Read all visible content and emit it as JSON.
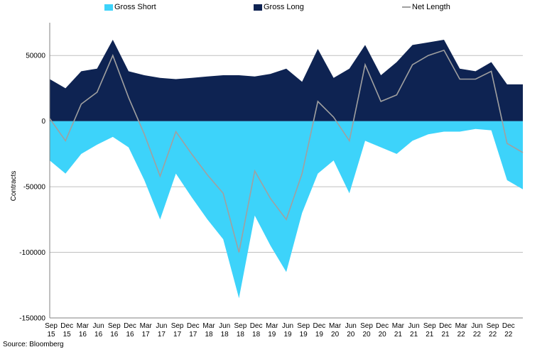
{
  "chart_data": {
    "type": "area",
    "title": "",
    "ylabel": "Contracts",
    "xlabel": "",
    "ylim": [
      -150000,
      75000
    ],
    "yticks": [
      50000,
      0,
      -50000,
      -100000,
      -150000
    ],
    "ytick_labels": [
      "50000",
      "0",
      "-50000",
      "-100000",
      "-150000"
    ],
    "grid": "horizontal",
    "legend": "top",
    "x_tick_labels": [
      {
        "m": "Sep",
        "y": "15"
      },
      {
        "m": "Dec",
        "y": "15"
      },
      {
        "m": "Mar",
        "y": "16"
      },
      {
        "m": "Jun",
        "y": "16"
      },
      {
        "m": "Sep",
        "y": "16"
      },
      {
        "m": "Dec",
        "y": "16"
      },
      {
        "m": "Mar",
        "y": "17"
      },
      {
        "m": "Jun",
        "y": "17"
      },
      {
        "m": "Sep",
        "y": "17"
      },
      {
        "m": "Dec",
        "y": "17"
      },
      {
        "m": "Mar",
        "y": "18"
      },
      {
        "m": "Jun",
        "y": "18"
      },
      {
        "m": "Sep",
        "y": "18"
      },
      {
        "m": "Dec",
        "y": "18"
      },
      {
        "m": "Mar",
        "y": "19"
      },
      {
        "m": "Jun",
        "y": "19"
      },
      {
        "m": "Sep",
        "y": "19"
      },
      {
        "m": "Dec",
        "y": "19"
      },
      {
        "m": "Mar",
        "y": "20"
      },
      {
        "m": "Jun",
        "y": "20"
      },
      {
        "m": "Sep",
        "y": "20"
      },
      {
        "m": "Dec",
        "y": "20"
      },
      {
        "m": "Mar",
        "y": "21"
      },
      {
        "m": "Jun",
        "y": "21"
      },
      {
        "m": "Sep",
        "y": "21"
      },
      {
        "m": "Dec",
        "y": "21"
      },
      {
        "m": "Mar",
        "y": "22"
      },
      {
        "m": "Jun",
        "y": "22"
      },
      {
        "m": "Sep",
        "y": "22"
      },
      {
        "m": "Dec",
        "y": "22"
      }
    ],
    "x": [
      "Sep 15",
      "Dec 15",
      "Mar 16",
      "Jun 16",
      "Sep 16",
      "Dec 16",
      "Mar 17",
      "Jun 17",
      "Sep 17",
      "Dec 17",
      "Mar 18",
      "Jun 18",
      "Sep 18",
      "Dec 18",
      "Mar 19",
      "Jun 19",
      "Sep 19",
      "Dec 19",
      "Mar 20",
      "Jun 20",
      "Sep 20",
      "Dec 20",
      "Mar 21",
      "Jun 21",
      "Sep 21",
      "Dec 21",
      "Mar 22",
      "Jun 22",
      "Sep 22",
      "Dec 22",
      "Jan 23"
    ],
    "series": [
      {
        "name": "Gross Short",
        "color": "#3DD3FA",
        "values": [
          -30000,
          -40000,
          -25000,
          -18000,
          -12000,
          -20000,
          -45000,
          -75000,
          -40000,
          -58000,
          -75000,
          -90000,
          -135000,
          -72000,
          -95000,
          -115000,
          -70000,
          -40000,
          -30000,
          -55000,
          -15000,
          -20000,
          -25000,
          -15000,
          -10000,
          -8000,
          -8000,
          -6000,
          -7000,
          -45000,
          -52000
        ]
      },
      {
        "name": "Gross Long",
        "color": "#0E2352",
        "values": [
          32000,
          25000,
          38000,
          40000,
          62000,
          38000,
          35000,
          33000,
          32000,
          33000,
          34000,
          35000,
          35000,
          34000,
          36000,
          40000,
          30000,
          55000,
          33000,
          40000,
          58000,
          35000,
          45000,
          58000,
          60000,
          62000,
          40000,
          38000,
          45000,
          28000,
          28000
        ]
      },
      {
        "name": "Net Length",
        "color": "#A0A0A0",
        "values": [
          2000,
          -15000,
          13000,
          22000,
          50000,
          18000,
          -10000,
          -42000,
          -8000,
          -25000,
          -41000,
          -55000,
          -100000,
          -38000,
          -59000,
          -75000,
          -40000,
          15000,
          3000,
          -15000,
          43000,
          15000,
          20000,
          43000,
          50000,
          54000,
          32000,
          32000,
          38000,
          -17000,
          -24000
        ]
      }
    ]
  },
  "legend": {
    "gross_short": "Gross Short",
    "gross_long": "Gross Long",
    "net_length": "Net Length"
  },
  "source": "Source: Bloomberg"
}
